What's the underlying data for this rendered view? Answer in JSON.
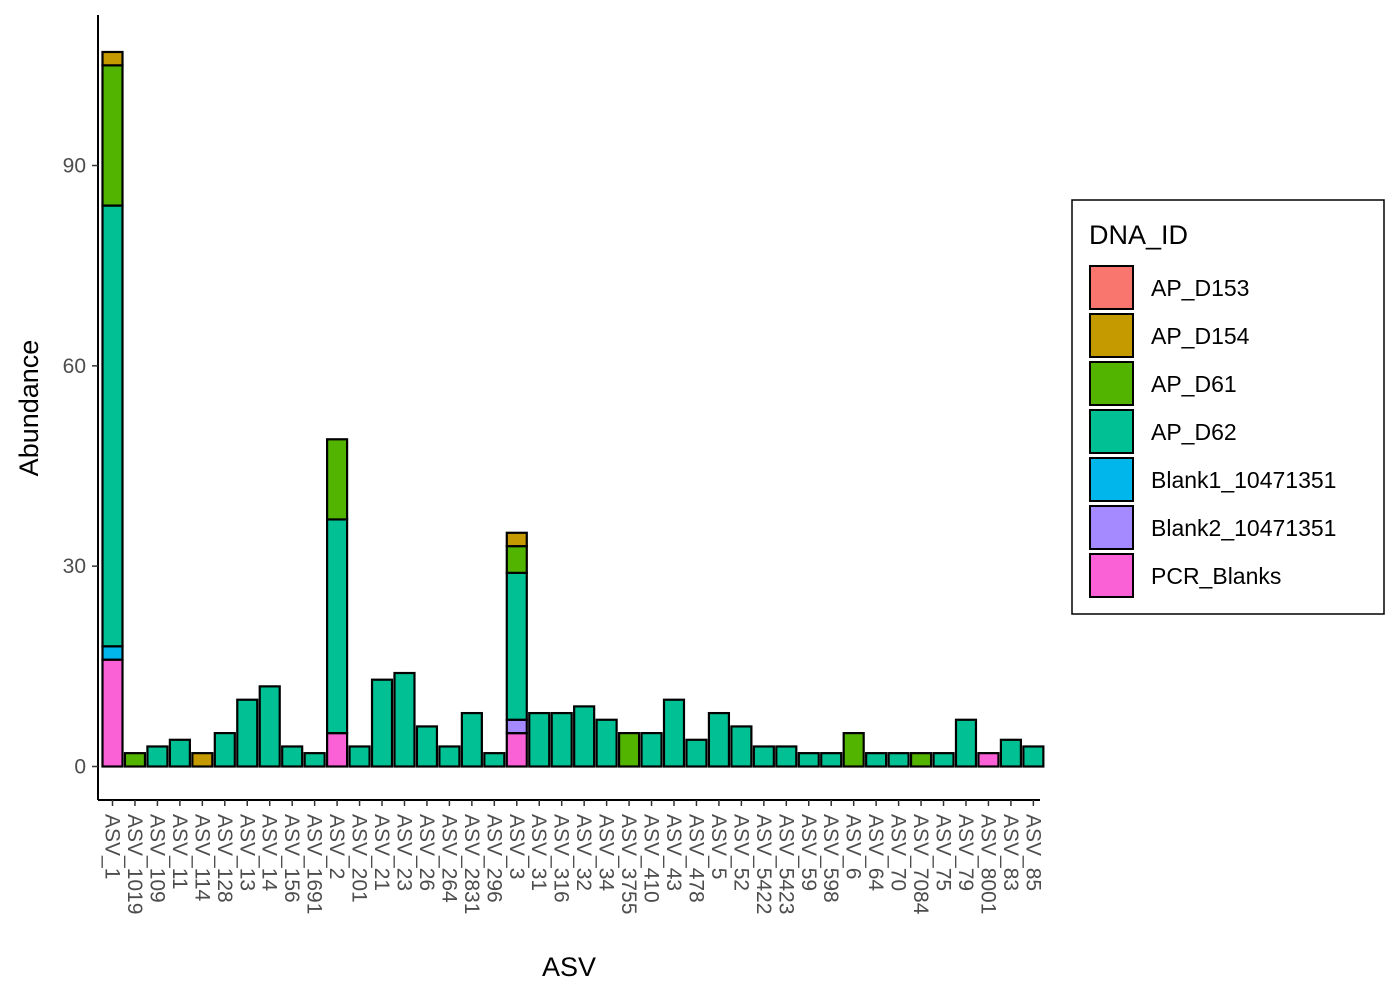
{
  "chart_data": {
    "type": "bar",
    "stacked": true,
    "xlabel": "ASV",
    "ylabel": "Abundance",
    "ylim": [
      -5,
      110
    ],
    "yticks": [
      0,
      30,
      60,
      90
    ],
    "grid": false,
    "legend": {
      "title": "DNA_ID",
      "placement": "right",
      "order": [
        "AP_D153",
        "AP_D154",
        "AP_D61",
        "AP_D62",
        "Blank1_10471351",
        "Blank2_10471351",
        "PCR_Blanks"
      ]
    },
    "stack_order_bottom_to_top": [
      "PCR_Blanks",
      "Blank2_10471351",
      "Blank1_10471351",
      "AP_D62",
      "AP_D61",
      "AP_D154",
      "AP_D153"
    ],
    "colors": {
      "AP_D153": "#F8766D",
      "AP_D154": "#C49A00",
      "AP_D61": "#53B400",
      "AP_D62": "#00C094",
      "Blank1_10471351": "#00B6EB",
      "Blank2_10471351": "#A58AFF",
      "PCR_Blanks": "#FB61D7"
    },
    "categories": [
      "ASV_1",
      "ASV_1019",
      "ASV_109",
      "ASV_11",
      "ASV_114",
      "ASV_128",
      "ASV_13",
      "ASV_14",
      "ASV_156",
      "ASV_1691",
      "ASV_2",
      "ASV_201",
      "ASV_21",
      "ASV_23",
      "ASV_26",
      "ASV_264",
      "ASV_2831",
      "ASV_296",
      "ASV_3",
      "ASV_31",
      "ASV_316",
      "ASV_32",
      "ASV_34",
      "ASV_3755",
      "ASV_410",
      "ASV_43",
      "ASV_478",
      "ASV_5",
      "ASV_52",
      "ASV_5422",
      "ASV_5423",
      "ASV_59",
      "ASV_598",
      "ASV_6",
      "ASV_64",
      "ASV_70",
      "ASV_7084",
      "ASV_75",
      "ASV_79",
      "ASV_8001",
      "ASV_83",
      "ASV_85"
    ],
    "series": [
      {
        "name": "AP_D153",
        "values": [
          0,
          0,
          0,
          0,
          0,
          0,
          0,
          0,
          0,
          0,
          0,
          0,
          0,
          0,
          0,
          0,
          0,
          0,
          0,
          0,
          0,
          0,
          0,
          0,
          0,
          0,
          0,
          0,
          0,
          0,
          0,
          0,
          0,
          0,
          0,
          0,
          0,
          0,
          0,
          0,
          0,
          0
        ]
      },
      {
        "name": "AP_D154",
        "values": [
          2,
          0,
          0,
          0,
          2,
          0,
          0,
          0,
          0,
          0,
          0,
          0,
          0,
          0,
          0,
          0,
          0,
          0,
          2,
          0,
          0,
          0,
          0,
          0,
          0,
          0,
          0,
          0,
          0,
          0,
          0,
          0,
          0,
          0,
          0,
          0,
          0,
          0,
          0,
          0,
          0,
          0
        ]
      },
      {
        "name": "AP_D61",
        "values": [
          21,
          2,
          0,
          0,
          0,
          0,
          0,
          0,
          0,
          0,
          12,
          0,
          0,
          0,
          0,
          0,
          0,
          0,
          4,
          0,
          0,
          0,
          0,
          5,
          0,
          0,
          0,
          0,
          0,
          0,
          0,
          0,
          0,
          5,
          0,
          0,
          2,
          0,
          0,
          0,
          0,
          0
        ]
      },
      {
        "name": "AP_D62",
        "values": [
          66,
          0,
          3,
          4,
          0,
          5,
          10,
          12,
          3,
          2,
          32,
          3,
          13,
          14,
          6,
          3,
          8,
          2,
          22,
          8,
          8,
          9,
          7,
          0,
          5,
          10,
          4,
          8,
          6,
          3,
          3,
          2,
          2,
          0,
          2,
          2,
          0,
          2,
          7,
          0,
          4,
          3
        ]
      },
      {
        "name": "Blank1_10471351",
        "values": [
          2,
          0,
          0,
          0,
          0,
          0,
          0,
          0,
          0,
          0,
          0,
          0,
          0,
          0,
          0,
          0,
          0,
          0,
          0,
          0,
          0,
          0,
          0,
          0,
          0,
          0,
          0,
          0,
          0,
          0,
          0,
          0,
          0,
          0,
          0,
          0,
          0,
          0,
          0,
          0,
          0,
          0
        ]
      },
      {
        "name": "Blank2_10471351",
        "values": [
          0,
          0,
          0,
          0,
          0,
          0,
          0,
          0,
          0,
          0,
          0,
          0,
          0,
          0,
          0,
          0,
          0,
          0,
          2,
          0,
          0,
          0,
          0,
          0,
          0,
          0,
          0,
          0,
          0,
          0,
          0,
          0,
          0,
          0,
          0,
          0,
          0,
          0,
          0,
          0,
          0,
          0
        ]
      },
      {
        "name": "PCR_Blanks",
        "values": [
          16,
          0,
          0,
          0,
          0,
          0,
          0,
          0,
          0,
          0,
          5,
          0,
          0,
          0,
          0,
          0,
          0,
          0,
          5,
          0,
          0,
          0,
          0,
          0,
          0,
          0,
          0,
          0,
          0,
          0,
          0,
          0,
          0,
          0,
          0,
          0,
          0,
          0,
          0,
          2,
          0,
          0
        ]
      }
    ]
  }
}
